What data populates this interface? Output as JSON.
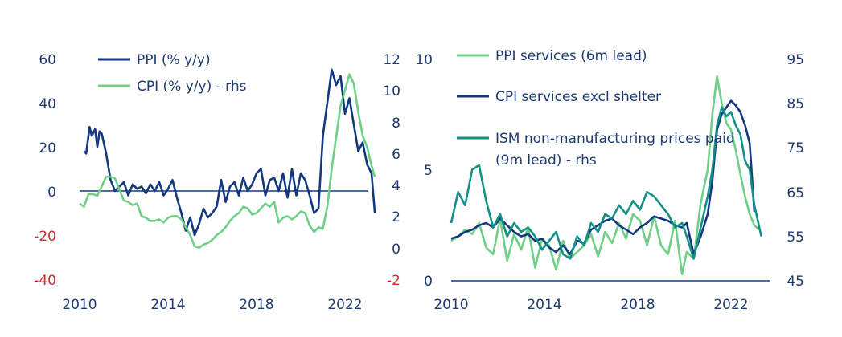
{
  "chart_data": [
    {
      "type": "line",
      "name": "left-chart",
      "x_ticks": [
        "2010",
        "2014",
        "2018",
        "2022"
      ],
      "xlim": [
        2010,
        2023.6
      ],
      "y_left": {
        "range": [
          -40,
          60
        ],
        "ticks": [
          "60",
          "40",
          "20",
          "0",
          "-20",
          "-40"
        ],
        "negative_color": "#d62828"
      },
      "y_right": {
        "range": [
          -2,
          12
        ],
        "ticks": [
          "12",
          "10",
          "8",
          "6",
          "4",
          "2",
          "0",
          "-2"
        ],
        "negative_color": "#d62828"
      },
      "legend": [
        "PPI (% y/y)",
        "CPI (% y/y) - rhs"
      ],
      "series": [
        {
          "name": "PPI (% y/y)",
          "axis": "left",
          "color": "#14387f",
          "x": [
            2010.2,
            2010.3,
            2010.45,
            2010.55,
            2010.7,
            2010.8,
            2010.9,
            2011.0,
            2011.2,
            2011.4,
            2011.6,
            2011.8,
            2012.0,
            2012.2,
            2012.4,
            2012.6,
            2012.8,
            2013.0,
            2013.2,
            2013.4,
            2013.6,
            2013.8,
            2014.0,
            2014.2,
            2014.4,
            2014.6,
            2014.8,
            2015.0,
            2015.2,
            2015.4,
            2015.6,
            2015.8,
            2016.0,
            2016.2,
            2016.4,
            2016.6,
            2016.8,
            2017.0,
            2017.2,
            2017.4,
            2017.6,
            2017.8,
            2018.0,
            2018.2,
            2018.4,
            2018.6,
            2018.8,
            2019.0,
            2019.2,
            2019.4,
            2019.6,
            2019.8,
            2020.0,
            2020.2,
            2020.4,
            2020.6,
            2020.8,
            2021.0,
            2021.2,
            2021.4,
            2021.6,
            2021.8,
            2022.0,
            2022.2,
            2022.4,
            2022.6,
            2022.8,
            2023.0,
            2023.2,
            2023.35
          ],
          "y": [
            18,
            17,
            29,
            25,
            28,
            20,
            27,
            26,
            17,
            5,
            0,
            2,
            4,
            -2,
            3,
            1,
            2,
            -1,
            3,
            0,
            4,
            -2,
            1,
            5,
            -3,
            -10,
            -18,
            -12,
            -20,
            -15,
            -8,
            -12,
            -10,
            -7,
            5,
            -5,
            2,
            4,
            -2,
            6,
            0,
            3,
            8,
            10,
            -2,
            5,
            6,
            0,
            8,
            -3,
            10,
            -2,
            8,
            5,
            -2,
            -10,
            -8,
            25,
            40,
            55,
            48,
            52,
            35,
            42,
            30,
            18,
            22,
            12,
            8,
            -10
          ],
          "values_note": "approximate monthly % y/y"
        },
        {
          "name": "CPI (% y/y) - rhs",
          "axis": "right",
          "color": "#6fcf86",
          "x": [
            2010.0,
            2010.2,
            2010.4,
            2010.6,
            2010.8,
            2011.0,
            2011.2,
            2011.4,
            2011.6,
            2011.8,
            2012.0,
            2012.2,
            2012.4,
            2012.6,
            2012.8,
            2013.0,
            2013.2,
            2013.4,
            2013.6,
            2013.8,
            2014.0,
            2014.2,
            2014.4,
            2014.6,
            2014.8,
            2015.0,
            2015.2,
            2015.4,
            2015.6,
            2015.8,
            2016.0,
            2016.2,
            2016.4,
            2016.6,
            2016.8,
            2017.0,
            2017.2,
            2017.4,
            2017.6,
            2017.8,
            2018.0,
            2018.2,
            2018.4,
            2018.6,
            2018.8,
            2019.0,
            2019.2,
            2019.4,
            2019.6,
            2019.8,
            2020.0,
            2020.2,
            2020.4,
            2020.6,
            2020.8,
            2021.0,
            2021.2,
            2021.4,
            2021.6,
            2021.8,
            2022.0,
            2022.2,
            2022.4,
            2022.6,
            2022.8,
            2023.0,
            2023.2,
            2023.35
          ],
          "y": [
            2.8,
            2.6,
            3.4,
            3.4,
            3.3,
            3.9,
            4.5,
            4.5,
            4.4,
            3.7,
            3.0,
            2.9,
            2.7,
            2.8,
            2.0,
            1.9,
            1.7,
            1.7,
            1.8,
            1.6,
            1.9,
            2.0,
            2.0,
            1.8,
            1.3,
            0.8,
            0.1,
            0.0,
            0.2,
            0.3,
            0.5,
            0.8,
            1.0,
            1.3,
            1.7,
            2.0,
            2.2,
            2.6,
            2.5,
            2.1,
            2.2,
            2.5,
            2.8,
            2.6,
            2.9,
            1.6,
            1.9,
            2.0,
            1.8,
            2.0,
            2.3,
            2.2,
            1.4,
            1.0,
            1.3,
            1.2,
            2.6,
            5.0,
            7.0,
            9.0,
            10.0,
            11.0,
            10.4,
            8.6,
            7.1,
            6.4,
            5.2,
            4.5
          ],
          "values_note": "approximate monthly % y/y"
        }
      ]
    },
    {
      "type": "line",
      "name": "right-chart",
      "x_ticks": [
        "2010",
        "2014",
        "2018",
        "2022"
      ],
      "xlim": [
        2010,
        2023.6
      ],
      "y_left": {
        "range": [
          0,
          10
        ],
        "ticks": [
          "10",
          "5",
          "0"
        ]
      },
      "y_right": {
        "range": [
          45,
          95
        ],
        "ticks": [
          "95",
          "85",
          "75",
          "65",
          "55",
          "45"
        ]
      },
      "legend": [
        "PPI services (6m lead)",
        "CPI services excl shelter",
        "ISM non-manufacturing prices paid",
        "(9m lead) - rhs"
      ],
      "series": [
        {
          "name": "PPI services (6m lead)",
          "axis": "left",
          "color": "#6fcf86",
          "x": [
            2010.0,
            2010.3,
            2010.6,
            2010.9,
            2011.2,
            2011.5,
            2011.8,
            2012.1,
            2012.4,
            2012.7,
            2013.0,
            2013.3,
            2013.6,
            2013.9,
            2014.2,
            2014.5,
            2014.8,
            2015.1,
            2015.4,
            2015.7,
            2016.0,
            2016.3,
            2016.6,
            2016.9,
            2017.2,
            2017.5,
            2017.8,
            2018.1,
            2018.4,
            2018.7,
            2019.0,
            2019.3,
            2019.6,
            2019.9,
            2020.1,
            2020.4,
            2020.7,
            2021.0,
            2021.2,
            2021.4,
            2021.6,
            2021.8,
            2022.0,
            2022.2,
            2022.4,
            2022.6,
            2022.8,
            2023.0,
            2023.2
          ],
          "y": [
            1.8,
            2.0,
            2.3,
            2.1,
            2.6,
            1.5,
            1.2,
            2.8,
            0.9,
            2.1,
            1.4,
            2.4,
            0.6,
            1.9,
            1.6,
            0.5,
            1.8,
            1.0,
            1.3,
            1.6,
            2.1,
            1.1,
            2.2,
            1.7,
            2.6,
            1.9,
            3.0,
            2.7,
            1.6,
            2.9,
            1.6,
            1.2,
            2.7,
            0.3,
            1.3,
            1.0,
            3.5,
            5.0,
            7.5,
            9.2,
            8.0,
            7.1,
            6.8,
            5.9,
            4.8,
            3.8,
            3.0,
            2.5,
            2.3
          ],
          "values_note": "approximate"
        },
        {
          "name": "CPI services excl shelter",
          "axis": "left",
          "color": "#14387f",
          "x": [
            2010.0,
            2010.3,
            2010.6,
            2010.9,
            2011.2,
            2011.5,
            2011.8,
            2012.1,
            2012.4,
            2012.7,
            2013.0,
            2013.3,
            2013.6,
            2013.9,
            2014.2,
            2014.5,
            2014.8,
            2015.1,
            2015.4,
            2015.7,
            2016.0,
            2016.3,
            2016.6,
            2016.9,
            2017.2,
            2017.5,
            2017.8,
            2018.1,
            2018.4,
            2018.7,
            2019.0,
            2019.3,
            2019.6,
            2019.9,
            2020.1,
            2020.4,
            2020.7,
            2021.0,
            2021.2,
            2021.4,
            2021.6,
            2021.8,
            2022.0,
            2022.2,
            2022.4,
            2022.6,
            2022.8,
            2023.0
          ],
          "y": [
            1.9,
            2.0,
            2.2,
            2.3,
            2.5,
            2.6,
            2.4,
            2.8,
            2.5,
            2.2,
            2.0,
            2.1,
            1.8,
            1.9,
            1.5,
            1.3,
            1.6,
            1.2,
            1.8,
            1.7,
            2.3,
            2.5,
            2.7,
            2.8,
            2.5,
            2.3,
            2.1,
            2.4,
            2.6,
            2.9,
            2.8,
            2.7,
            2.5,
            2.4,
            2.6,
            1.2,
            2.0,
            3.0,
            4.5,
            6.8,
            7.5,
            7.8,
            8.1,
            7.9,
            7.6,
            7.0,
            6.2,
            3.1
          ],
          "values_note": "approximate"
        },
        {
          "name": "ISM non-manufacturing prices paid (9m lead) - rhs",
          "axis": "right",
          "color": "#139186",
          "x": [
            2010.0,
            2010.3,
            2010.6,
            2010.9,
            2011.2,
            2011.5,
            2011.8,
            2012.1,
            2012.4,
            2012.7,
            2013.0,
            2013.3,
            2013.6,
            2013.9,
            2014.2,
            2014.5,
            2014.8,
            2015.1,
            2015.4,
            2015.7,
            2016.0,
            2016.3,
            2016.6,
            2016.9,
            2017.2,
            2017.5,
            2017.8,
            2018.1,
            2018.4,
            2018.7,
            2019.0,
            2019.3,
            2019.6,
            2019.9,
            2020.1,
            2020.4,
            2020.7,
            2021.0,
            2021.2,
            2021.4,
            2021.6,
            2021.8,
            2022.0,
            2022.2,
            2022.4,
            2022.6,
            2022.8,
            2023.0,
            2023.3
          ],
          "y": [
            58,
            65,
            62,
            70,
            71,
            63,
            57,
            60,
            55,
            58,
            56,
            57,
            55,
            52,
            54,
            56,
            51,
            50,
            55,
            53,
            58,
            56,
            60,
            59,
            62,
            60,
            63,
            61,
            65,
            64,
            62,
            60,
            57,
            58,
            55,
            50,
            57,
            64,
            70,
            80,
            84,
            82,
            83,
            80,
            78,
            72,
            70,
            62,
            55
          ],
          "values_note": "approximate index"
        }
      ]
    }
  ]
}
